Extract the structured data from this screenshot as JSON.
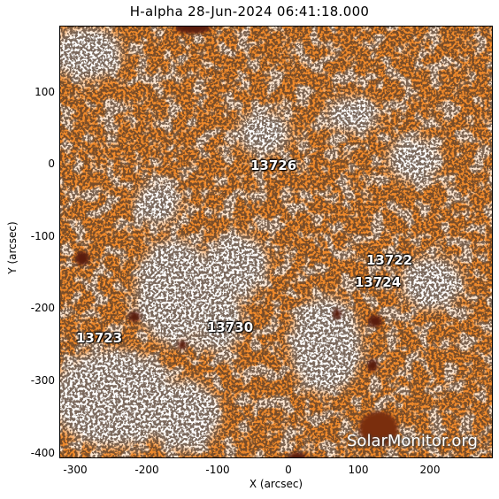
{
  "title": "H-alpha 28-Jun-2024 06:41:18.000",
  "xlabel": "X (arcsec)",
  "ylabel": "Y (arcsec)",
  "xlim": [
    -320,
    280
  ],
  "ylim": [
    -405,
    190
  ],
  "x_ticks": [
    "-300",
    "-200",
    "-100",
    "0",
    "100",
    "200"
  ],
  "y_ticks": [
    "100",
    "0",
    "-100",
    "-200",
    "-300",
    "-400"
  ],
  "regions": [
    "13726",
    "13722",
    "13724",
    "13723",
    "13730"
  ],
  "watermark": "SolarMonitor.org",
  "colors": {
    "chromosphere": "#f08a2c",
    "plage": "#ffffff",
    "dark": "#5a1e0a",
    "fibrils": "#1a0e08"
  }
}
